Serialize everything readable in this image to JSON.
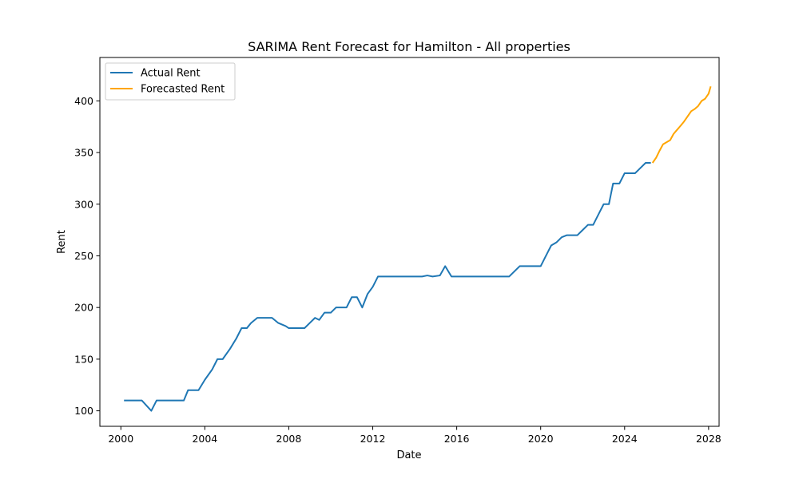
{
  "chart_data": {
    "type": "line",
    "title": "SARIMA Rent Forecast for Hamilton - All properties",
    "xlabel": "Date",
    "ylabel": "Rent",
    "xlim": [
      1999.0,
      2028.5
    ],
    "ylim": [
      85,
      442
    ],
    "x_ticks": [
      2000,
      2004,
      2008,
      2012,
      2016,
      2020,
      2024,
      2028
    ],
    "x_tick_labels": [
      "2000",
      "2004",
      "2008",
      "2012",
      "2016",
      "2020",
      "2024",
      "2028"
    ],
    "y_ticks": [
      100,
      150,
      200,
      250,
      300,
      350,
      400
    ],
    "y_tick_labels": [
      "100",
      "150",
      "200",
      "250",
      "300",
      "350",
      "400"
    ],
    "grid": false,
    "legend_position": "top-left",
    "series": [
      {
        "name": "Actual Rent",
        "color": "#1f77b4",
        "points": [
          [
            2000.15,
            110
          ],
          [
            2001.0,
            110
          ],
          [
            2001.45,
            100
          ],
          [
            2001.7,
            110
          ],
          [
            2002.5,
            110
          ],
          [
            2003.0,
            110
          ],
          [
            2003.2,
            120
          ],
          [
            2003.7,
            120
          ],
          [
            2004.0,
            130
          ],
          [
            2004.35,
            140
          ],
          [
            2004.6,
            150
          ],
          [
            2004.85,
            150
          ],
          [
            2005.2,
            160
          ],
          [
            2005.5,
            170
          ],
          [
            2005.75,
            180
          ],
          [
            2006.0,
            180
          ],
          [
            2006.2,
            185
          ],
          [
            2006.5,
            190
          ],
          [
            2007.2,
            190
          ],
          [
            2007.5,
            185
          ],
          [
            2007.85,
            182
          ],
          [
            2008.0,
            180
          ],
          [
            2008.6,
            180
          ],
          [
            2008.75,
            180
          ],
          [
            2009.0,
            185
          ],
          [
            2009.25,
            190
          ],
          [
            2009.45,
            188
          ],
          [
            2009.7,
            195
          ],
          [
            2010.0,
            195
          ],
          [
            2010.25,
            200
          ],
          [
            2010.75,
            200
          ],
          [
            2011.0,
            210
          ],
          [
            2011.25,
            210
          ],
          [
            2011.5,
            200
          ],
          [
            2011.75,
            213
          ],
          [
            2012.0,
            220
          ],
          [
            2012.25,
            230
          ],
          [
            2013.0,
            230
          ],
          [
            2014.0,
            230
          ],
          [
            2014.35,
            230
          ],
          [
            2014.6,
            231
          ],
          [
            2014.85,
            230
          ],
          [
            2015.2,
            231
          ],
          [
            2015.45,
            240
          ],
          [
            2015.75,
            230
          ],
          [
            2016.5,
            230
          ],
          [
            2017.5,
            230
          ],
          [
            2018.5,
            230
          ],
          [
            2019.0,
            240
          ],
          [
            2019.5,
            240
          ],
          [
            2020.0,
            240
          ],
          [
            2020.25,
            250
          ],
          [
            2020.5,
            260
          ],
          [
            2020.75,
            263
          ],
          [
            2021.0,
            268
          ],
          [
            2021.25,
            270
          ],
          [
            2021.75,
            270
          ],
          [
            2022.0,
            275
          ],
          [
            2022.25,
            280
          ],
          [
            2022.5,
            280
          ],
          [
            2022.75,
            290
          ],
          [
            2023.0,
            300
          ],
          [
            2023.25,
            300
          ],
          [
            2023.45,
            320
          ],
          [
            2023.75,
            320
          ],
          [
            2024.0,
            330
          ],
          [
            2024.5,
            330
          ],
          [
            2024.75,
            335
          ],
          [
            2025.0,
            340
          ],
          [
            2025.25,
            340
          ]
        ]
      },
      {
        "name": "Forecasted Rent",
        "color": "#ffa500",
        "points": [
          [
            2025.33,
            340
          ],
          [
            2025.5,
            345
          ],
          [
            2025.67,
            352
          ],
          [
            2025.83,
            358
          ],
          [
            2026.0,
            360
          ],
          [
            2026.17,
            362
          ],
          [
            2026.33,
            368
          ],
          [
            2026.5,
            372
          ],
          [
            2026.67,
            376
          ],
          [
            2026.83,
            380
          ],
          [
            2027.0,
            385
          ],
          [
            2027.17,
            390
          ],
          [
            2027.33,
            392
          ],
          [
            2027.5,
            395
          ],
          [
            2027.67,
            400
          ],
          [
            2027.83,
            402
          ],
          [
            2028.0,
            407
          ],
          [
            2028.1,
            414
          ]
        ]
      }
    ]
  }
}
